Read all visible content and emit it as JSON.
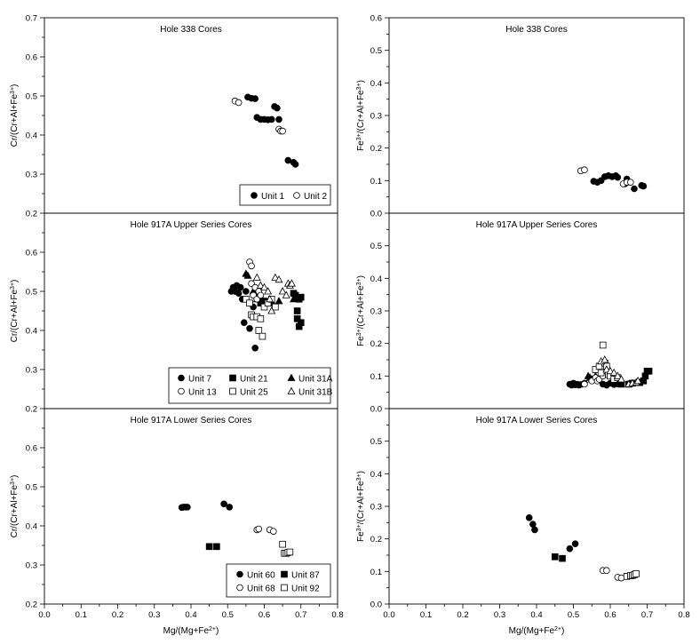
{
  "chart_data": [
    {
      "type": "scatter",
      "title": "Hole 338 Cores",
      "ylabel_parts": [
        "Cr/(Cr+Al+Fe",
        "3+",
        ")"
      ],
      "xlabel_parts": [],
      "xlim": [
        0.0,
        0.8
      ],
      "ylim": [
        0.2,
        0.7
      ],
      "y_ticks": [
        "0.2",
        "0.3",
        "0.4",
        "0.5",
        "0.6",
        "0.7"
      ],
      "x_ticks": [],
      "legend_rows": [
        [
          "Unit 1",
          "Unit 2"
        ]
      ],
      "series": [
        {
          "name": "Unit 1",
          "marker": "filled-circle",
          "points": [
            [
              0.555,
              0.497
            ],
            [
              0.565,
              0.494
            ],
            [
              0.575,
              0.493
            ],
            [
              0.58,
              0.445
            ],
            [
              0.59,
              0.44
            ],
            [
              0.6,
              0.44
            ],
            [
              0.61,
              0.439
            ],
            [
              0.62,
              0.44
            ],
            [
              0.628,
              0.473
            ],
            [
              0.635,
              0.469
            ],
            [
              0.64,
              0.44
            ],
            [
              0.665,
              0.335
            ],
            [
              0.68,
              0.33
            ],
            [
              0.685,
              0.325
            ]
          ]
        },
        {
          "name": "Unit 2",
          "marker": "open-circle",
          "points": [
            [
              0.52,
              0.487
            ],
            [
              0.53,
              0.483
            ],
            [
              0.64,
              0.415
            ],
            [
              0.645,
              0.41
            ],
            [
              0.65,
              0.41
            ]
          ]
        }
      ]
    },
    {
      "type": "scatter",
      "title": "Hole 917A Upper Series Cores",
      "ylabel_parts": [
        "Cr/(Cr+Al+Fe",
        "3+",
        ")"
      ],
      "xlabel_parts": [],
      "xlim": [
        0.0,
        0.8
      ],
      "ylim": [
        0.2,
        0.7
      ],
      "y_ticks": [
        "0.2",
        "0.3",
        "0.4",
        "0.5",
        "0.6"
      ],
      "x_ticks": [],
      "legend_rows": [
        [
          "Unit 7",
          "Unit 21",
          "Unit 31A"
        ],
        [
          "Unit 13",
          "Unit 25",
          "Unit 31B"
        ]
      ],
      "series": [
        {
          "name": "Unit 7",
          "marker": "filled-circle",
          "points": [
            [
              0.51,
              0.5
            ],
            [
              0.515,
              0.51
            ],
            [
              0.52,
              0.5
            ],
            [
              0.525,
              0.515
            ],
            [
              0.53,
              0.495
            ],
            [
              0.535,
              0.51
            ],
            [
              0.54,
              0.48
            ],
            [
              0.545,
              0.42
            ],
            [
              0.55,
              0.5
            ],
            [
              0.56,
              0.405
            ],
            [
              0.57,
              0.46
            ],
            [
              0.575,
              0.355
            ],
            [
              0.58,
              0.5
            ],
            [
              0.585,
              0.49
            ],
            [
              0.59,
              0.48
            ]
          ]
        },
        {
          "name": "Unit 21",
          "marker": "filled-square",
          "points": [
            [
              0.59,
              0.47
            ],
            [
              0.6,
              0.475
            ],
            [
              0.61,
              0.47
            ],
            [
              0.62,
              0.47
            ],
            [
              0.68,
              0.495
            ],
            [
              0.685,
              0.49
            ],
            [
              0.69,
              0.45
            ],
            [
              0.69,
              0.43
            ],
            [
              0.695,
              0.48
            ],
            [
              0.695,
              0.41
            ],
            [
              0.7,
              0.42
            ],
            [
              0.7,
              0.485
            ]
          ]
        },
        {
          "name": "Unit 31A",
          "marker": "filled-triangle",
          "points": [
            [
              0.55,
              0.545
            ],
            [
              0.555,
              0.54
            ],
            [
              0.57,
              0.5
            ],
            [
              0.58,
              0.48
            ],
            [
              0.64,
              0.475
            ],
            [
              0.68,
              0.48
            ]
          ]
        },
        {
          "name": "Unit 13",
          "marker": "open-circle",
          "points": [
            [
              0.56,
              0.575
            ],
            [
              0.565,
              0.565
            ],
            [
              0.565,
              0.52
            ],
            [
              0.57,
              0.49
            ],
            [
              0.575,
              0.51
            ],
            [
              0.58,
              0.48
            ],
            [
              0.585,
              0.5
            ],
            [
              0.59,
              0.49
            ]
          ]
        },
        {
          "name": "Unit 25",
          "marker": "open-square",
          "points": [
            [
              0.55,
              0.48
            ],
            [
              0.56,
              0.47
            ],
            [
              0.565,
              0.44
            ],
            [
              0.57,
              0.435
            ],
            [
              0.58,
              0.435
            ],
            [
              0.585,
              0.4
            ],
            [
              0.59,
              0.43
            ],
            [
              0.595,
              0.385
            ],
            [
              0.6,
              0.46
            ],
            [
              0.61,
              0.47
            ],
            [
              0.62,
              0.48
            ],
            [
              0.63,
              0.46
            ]
          ]
        },
        {
          "name": "Unit 31B",
          "marker": "open-triangle",
          "points": [
            [
              0.58,
              0.535
            ],
            [
              0.59,
              0.515
            ],
            [
              0.6,
              0.51
            ],
            [
              0.61,
              0.5
            ],
            [
              0.615,
              0.48
            ],
            [
              0.62,
              0.45
            ],
            [
              0.63,
              0.535
            ],
            [
              0.64,
              0.53
            ],
            [
              0.65,
              0.5
            ],
            [
              0.66,
              0.49
            ],
            [
              0.665,
              0.52
            ],
            [
              0.67,
              0.515
            ],
            [
              0.675,
              0.52
            ]
          ]
        }
      ]
    },
    {
      "type": "scatter",
      "title": "Hole 917A Lower Series Cores",
      "ylabel_parts": [
        "Cr/(Cr+Al+Fe",
        "3+",
        ")"
      ],
      "xlabel_parts": [
        "Mg/(Mg+Fe",
        "2+",
        ")"
      ],
      "xlim": [
        0.0,
        0.8
      ],
      "ylim": [
        0.2,
        0.7
      ],
      "y_ticks": [
        "0.2",
        "0.3",
        "0.4",
        "0.5",
        "0.6"
      ],
      "x_ticks": [
        "0.0",
        "0.1",
        "0.2",
        "0.3",
        "0.4",
        "0.5",
        "0.6",
        "0.7",
        "0.8"
      ],
      "legend_rows": [
        [
          "Unit 60",
          "Unit 87"
        ],
        [
          "Unit 68",
          "Unit 92"
        ]
      ],
      "series": [
        {
          "name": "Unit 60",
          "marker": "filled-circle",
          "points": [
            [
              0.375,
              0.447
            ],
            [
              0.38,
              0.448
            ],
            [
              0.385,
              0.448
            ],
            [
              0.39,
              0.448
            ],
            [
              0.49,
              0.456
            ],
            [
              0.505,
              0.448
            ]
          ]
        },
        {
          "name": "Unit 87",
          "marker": "filled-square",
          "points": [
            [
              0.45,
              0.347
            ],
            [
              0.47,
              0.347
            ]
          ]
        },
        {
          "name": "Unit 68",
          "marker": "open-circle",
          "points": [
            [
              0.58,
              0.39
            ],
            [
              0.585,
              0.392
            ],
            [
              0.615,
              0.39
            ],
            [
              0.625,
              0.386
            ]
          ]
        },
        {
          "name": "Unit 92",
          "marker": "open-square",
          "points": [
            [
              0.65,
              0.353
            ],
            [
              0.655,
              0.33
            ],
            [
              0.66,
              0.33
            ],
            [
              0.665,
              0.332
            ],
            [
              0.67,
              0.333
            ]
          ]
        }
      ]
    },
    {
      "type": "scatter",
      "title": "Hole 338 Cores",
      "ylabel_parts": [
        "Fe",
        "3+",
        "/(Cr+Al+Fe",
        "3+",
        ")"
      ],
      "xlabel_parts": [],
      "xlim": [
        0.0,
        0.8
      ],
      "ylim": [
        0.0,
        0.6
      ],
      "y_ticks": [
        "0.0",
        "0.1",
        "0.2",
        "0.3",
        "0.4",
        "0.5",
        "0.6"
      ],
      "x_ticks": [],
      "legend_rows": [],
      "series": [
        {
          "name": "Unit 1",
          "marker": "filled-circle",
          "points": [
            [
              0.555,
              0.098
            ],
            [
              0.565,
              0.095
            ],
            [
              0.575,
              0.1
            ],
            [
              0.585,
              0.112
            ],
            [
              0.595,
              0.115
            ],
            [
              0.605,
              0.112
            ],
            [
              0.615,
              0.115
            ],
            [
              0.62,
              0.11
            ],
            [
              0.64,
              0.09
            ],
            [
              0.645,
              0.105
            ],
            [
              0.665,
              0.075
            ],
            [
              0.685,
              0.085
            ],
            [
              0.69,
              0.083
            ]
          ]
        },
        {
          "name": "Unit 2",
          "marker": "open-circle",
          "points": [
            [
              0.52,
              0.13
            ],
            [
              0.53,
              0.133
            ],
            [
              0.635,
              0.09
            ],
            [
              0.645,
              0.095
            ],
            [
              0.655,
              0.095
            ]
          ]
        }
      ]
    },
    {
      "type": "scatter",
      "title": "Hole 917A Upper Series Cores",
      "ylabel_parts": [
        "Fe",
        "3+",
        "/(Cr+Al+Fe",
        "3+",
        ")"
      ],
      "xlabel_parts": [],
      "xlim": [
        0.0,
        0.8
      ],
      "ylim": [
        0.0,
        0.6
      ],
      "y_ticks": [
        "0.0",
        "0.1",
        "0.2",
        "0.3",
        "0.4",
        "0.5"
      ],
      "x_ticks": [],
      "legend_rows": [],
      "series": [
        {
          "name": "Unit 7",
          "marker": "filled-circle",
          "points": [
            [
              0.49,
              0.075
            ],
            [
              0.495,
              0.072
            ],
            [
              0.5,
              0.078
            ],
            [
              0.505,
              0.073
            ],
            [
              0.51,
              0.075
            ],
            [
              0.515,
              0.072
            ],
            [
              0.52,
              0.074
            ],
            [
              0.53,
              0.078
            ],
            [
              0.58,
              0.075
            ],
            [
              0.59,
              0.072
            ],
            [
              0.6,
              0.078
            ],
            [
              0.61,
              0.074
            ],
            [
              0.62,
              0.076
            ]
          ]
        },
        {
          "name": "Unit 21",
          "marker": "filled-square",
          "points": [
            [
              0.63,
              0.075
            ],
            [
              0.65,
              0.075
            ],
            [
              0.66,
              0.078
            ],
            [
              0.68,
              0.08
            ],
            [
              0.69,
              0.085
            ],
            [
              0.695,
              0.1
            ],
            [
              0.7,
              0.115
            ],
            [
              0.705,
              0.115
            ]
          ]
        },
        {
          "name": "Unit 31A",
          "marker": "filled-triangle",
          "points": [
            [
              0.54,
              0.1
            ],
            [
              0.545,
              0.095
            ],
            [
              0.55,
              0.09
            ],
            [
              0.56,
              0.1
            ],
            [
              0.57,
              0.088
            ]
          ]
        },
        {
          "name": "Unit 13",
          "marker": "open-circle",
          "points": [
            [
              0.53,
              0.075
            ],
            [
              0.55,
              0.085
            ],
            [
              0.56,
              0.095
            ],
            [
              0.565,
              0.085
            ],
            [
              0.57,
              0.09
            ],
            [
              0.58,
              0.1
            ]
          ]
        },
        {
          "name": "Unit 25",
          "marker": "open-square",
          "points": [
            [
              0.56,
              0.12
            ],
            [
              0.57,
              0.13
            ],
            [
              0.575,
              0.11
            ],
            [
              0.58,
              0.195
            ],
            [
              0.585,
              0.14
            ],
            [
              0.59,
              0.13
            ],
            [
              0.595,
              0.105
            ],
            [
              0.6,
              0.1
            ],
            [
              0.61,
              0.09
            ],
            [
              0.62,
              0.095
            ]
          ]
        },
        {
          "name": "Unit 31B",
          "marker": "open-triangle",
          "points": [
            [
              0.575,
              0.145
            ],
            [
              0.585,
              0.15
            ],
            [
              0.59,
              0.12
            ],
            [
              0.6,
              0.115
            ],
            [
              0.61,
              0.11
            ],
            [
              0.62,
              0.1
            ],
            [
              0.63,
              0.09
            ],
            [
              0.65,
              0.075
            ],
            [
              0.66,
              0.078
            ],
            [
              0.67,
              0.08
            ],
            [
              0.675,
              0.085
            ]
          ]
        }
      ]
    },
    {
      "type": "scatter",
      "title": "Hole 917A Lower Series Cores",
      "ylabel_parts": [
        "Fe",
        "3+",
        "/(Cr+Al+Fe",
        "3+",
        ")"
      ],
      "xlabel_parts": [
        "Mg/(Mg+Fe",
        "2+",
        ")"
      ],
      "xlim": [
        0.0,
        0.8
      ],
      "ylim": [
        0.0,
        0.6
      ],
      "y_ticks": [
        "0.0",
        "0.1",
        "0.2",
        "0.3",
        "0.4",
        "0.5"
      ],
      "x_ticks": [
        "0.0",
        "0.1",
        "0.2",
        "0.3",
        "0.4",
        "0.5",
        "0.6",
        "0.7",
        "0.8"
      ],
      "legend_rows": [],
      "series": [
        {
          "name": "Unit 60",
          "marker": "filled-circle",
          "points": [
            [
              0.38,
              0.265
            ],
            [
              0.39,
              0.245
            ],
            [
              0.395,
              0.228
            ],
            [
              0.49,
              0.17
            ],
            [
              0.505,
              0.185
            ]
          ]
        },
        {
          "name": "Unit 87",
          "marker": "filled-square",
          "points": [
            [
              0.45,
              0.145
            ],
            [
              0.47,
              0.14
            ]
          ]
        },
        {
          "name": "Unit 68",
          "marker": "open-circle",
          "points": [
            [
              0.58,
              0.103
            ],
            [
              0.59,
              0.103
            ],
            [
              0.62,
              0.082
            ],
            [
              0.63,
              0.08
            ]
          ]
        },
        {
          "name": "Unit 92",
          "marker": "open-square",
          "points": [
            [
              0.645,
              0.085
            ],
            [
              0.655,
              0.087
            ],
            [
              0.66,
              0.088
            ],
            [
              0.665,
              0.09
            ],
            [
              0.67,
              0.093
            ]
          ]
        }
      ]
    }
  ]
}
